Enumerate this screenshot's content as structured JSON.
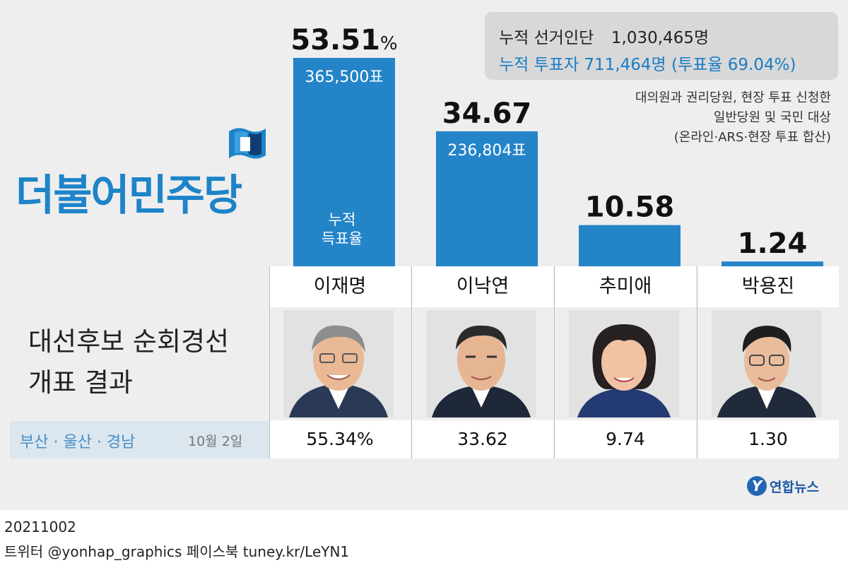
{
  "party_logo": {
    "name": "더불어민주당",
    "flag_colors": [
      "#1d84c9",
      "#3aa0de",
      "#0f3d73"
    ]
  },
  "header": {
    "total_electors_label": "누적 선거인단",
    "total_electors": "1,030,465명",
    "total_voters_text": "누적 투표자 711,464명 (투표율 69.04%)",
    "note_lines": [
      "대의원과 권리당원, 현장 투표 신청한",
      "일반당원 및 국민 대상",
      "(온라인·ARS·현장 투표 합산)"
    ]
  },
  "chart_data": {
    "type": "bar",
    "categories": [
      "이재명",
      "이낙연",
      "추미애",
      "박용진"
    ],
    "values": [
      53.51,
      34.67,
      10.58,
      1.24
    ],
    "value_labels": [
      "53.51",
      "34.67",
      "10.58",
      "1.24"
    ],
    "unit": "%",
    "votes": [
      "365,500표",
      "236,804표",
      "",
      ""
    ],
    "bar_caption": [
      "누적",
      "득표율"
    ],
    "ylim": [
      0,
      53.51
    ],
    "color": "#2484c8"
  },
  "table": {
    "candidates": [
      "이재명",
      "이낙연",
      "추미애",
      "박용진"
    ],
    "region": "부산 · 울산 · 경남",
    "region_date": "10월 2일",
    "region_values": [
      "55.34%",
      "33.62",
      "9.74",
      "1.30"
    ]
  },
  "title": {
    "line1": "대선후보 순회경선",
    "line2": "개표 결과"
  },
  "source": {
    "mark": "Y",
    "name": "연합뉴스"
  },
  "footer": {
    "date": "20211002",
    "sns": "트위터 @yonhap_graphics  페이스북 tuney.kr/LeYN1"
  }
}
